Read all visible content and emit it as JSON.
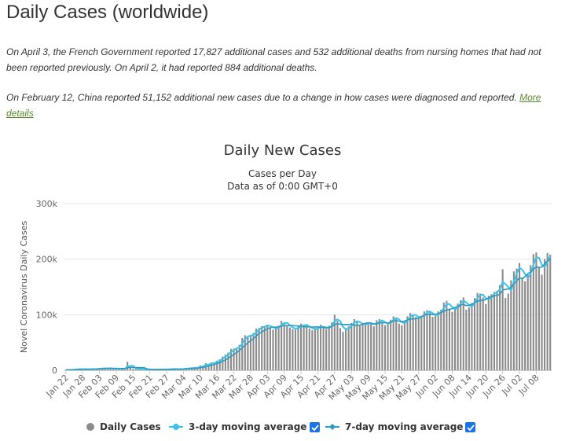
{
  "page": {
    "title": "Daily Cases (worldwide)",
    "note1": "On April 3, the French Government reported 17,827 additional cases and 532 additional deaths from nursing homes that had not been reported previously. On April 2, it had reported 884 additional deaths.",
    "note2_text": "On February 12, China reported 51,152 additional new cases due to a change in how cases were diagnosed and reported.",
    "note2_link": "More details"
  },
  "colors": {
    "bars": "#8c8c8c",
    "ma3": "#3cc3ec",
    "ma7": "#2a9cc0",
    "grid": "#e6e6e6",
    "checkbox": "#1a73e8"
  },
  "chart_data": {
    "type": "bar",
    "title": "Daily New Cases",
    "subtitle": "Cases per Day",
    "subtitle2": "Data as of 0:00 GMT+0",
    "ylabel": "Novel Coronavirus Daily Cases",
    "ylim": [
      0,
      300000
    ],
    "yticks": [
      0,
      100000,
      200000,
      300000
    ],
    "ytick_labels": [
      "0",
      "100k",
      "200k",
      "300k"
    ],
    "grid": true,
    "legend_position": "bottom",
    "x_tick_labels": [
      "Jan 22",
      "Jan 28",
      "Feb 03",
      "Feb 09",
      "Feb 15",
      "Feb 21",
      "Feb 27",
      "Mar 04",
      "Mar 10",
      "Mar 16",
      "Mar 22",
      "Mar 28",
      "Apr 03",
      "Apr 09",
      "Apr 15",
      "Apr 21",
      "Apr 27",
      "May 03",
      "May 09",
      "May 15",
      "May 21",
      "May 27",
      "Jun 02",
      "Jun 08",
      "Jun 14",
      "Jun 20",
      "Jun 26",
      "Jul 02",
      "Jul 08"
    ],
    "start_date": "2020-01-22",
    "tick_interval_days": 6,
    "values": [
      560,
      650,
      590,
      2070,
      1700,
      2680,
      1510,
      1960,
      2060,
      1700,
      2580,
      2830,
      3290,
      3210,
      3930,
      3700,
      3280,
      2750,
      3090,
      2630,
      2470,
      2010,
      15150,
      6500,
      2710,
      2030,
      2090,
      1990,
      1920,
      550,
      900,
      1380,
      600,
      1800,
      1110,
      1430,
      1760,
      2300,
      2400,
      1970,
      1900,
      2500,
      2200,
      3600,
      4100,
      4000,
      4500,
      4400,
      8900,
      7100,
      12600,
      10400,
      14000,
      14300,
      17400,
      19700,
      24800,
      28400,
      31800,
      38500,
      39200,
      40000,
      45700,
      58000,
      63000,
      61500,
      62700,
      67000,
      75000,
      76000,
      79500,
      80000,
      82000,
      77000,
      73000,
      76000,
      80000,
      89000,
      86000,
      81000,
      77000,
      74000,
      73000,
      79000,
      84000,
      80000,
      81000,
      75000,
      72000,
      76000,
      77000,
      82000,
      76000,
      74000,
      80000,
      86000,
      100000,
      89000,
      76000,
      69000,
      76000,
      79000,
      85000,
      92000,
      88000,
      80000,
      83000,
      84000,
      86000,
      83000,
      79000,
      90000,
      92000,
      87000,
      81000,
      84000,
      91000,
      97000,
      94000,
      84000,
      81000,
      89000,
      97000,
      103000,
      99000,
      96000,
      93000,
      98000,
      106000,
      108000,
      104000,
      96000,
      98000,
      106000,
      109000,
      122000,
      125000,
      111000,
      105000,
      113000,
      120000,
      126000,
      131000,
      109000,
      113000,
      121000,
      130000,
      139000,
      138000,
      131000,
      119000,
      134000,
      137000,
      141000,
      143000,
      153000,
      182000,
      130000,
      138000,
      162000,
      178000,
      183000,
      193000,
      167000,
      160000,
      172000,
      189000,
      209000,
      212000,
      186000,
      172000,
      200000,
      211000,
      208000
    ],
    "series": [
      {
        "name": "Daily Cases",
        "type": "bar"
      },
      {
        "name": "3-day moving average",
        "type": "line"
      },
      {
        "name": "7-day moving average",
        "type": "line"
      }
    ]
  }
}
